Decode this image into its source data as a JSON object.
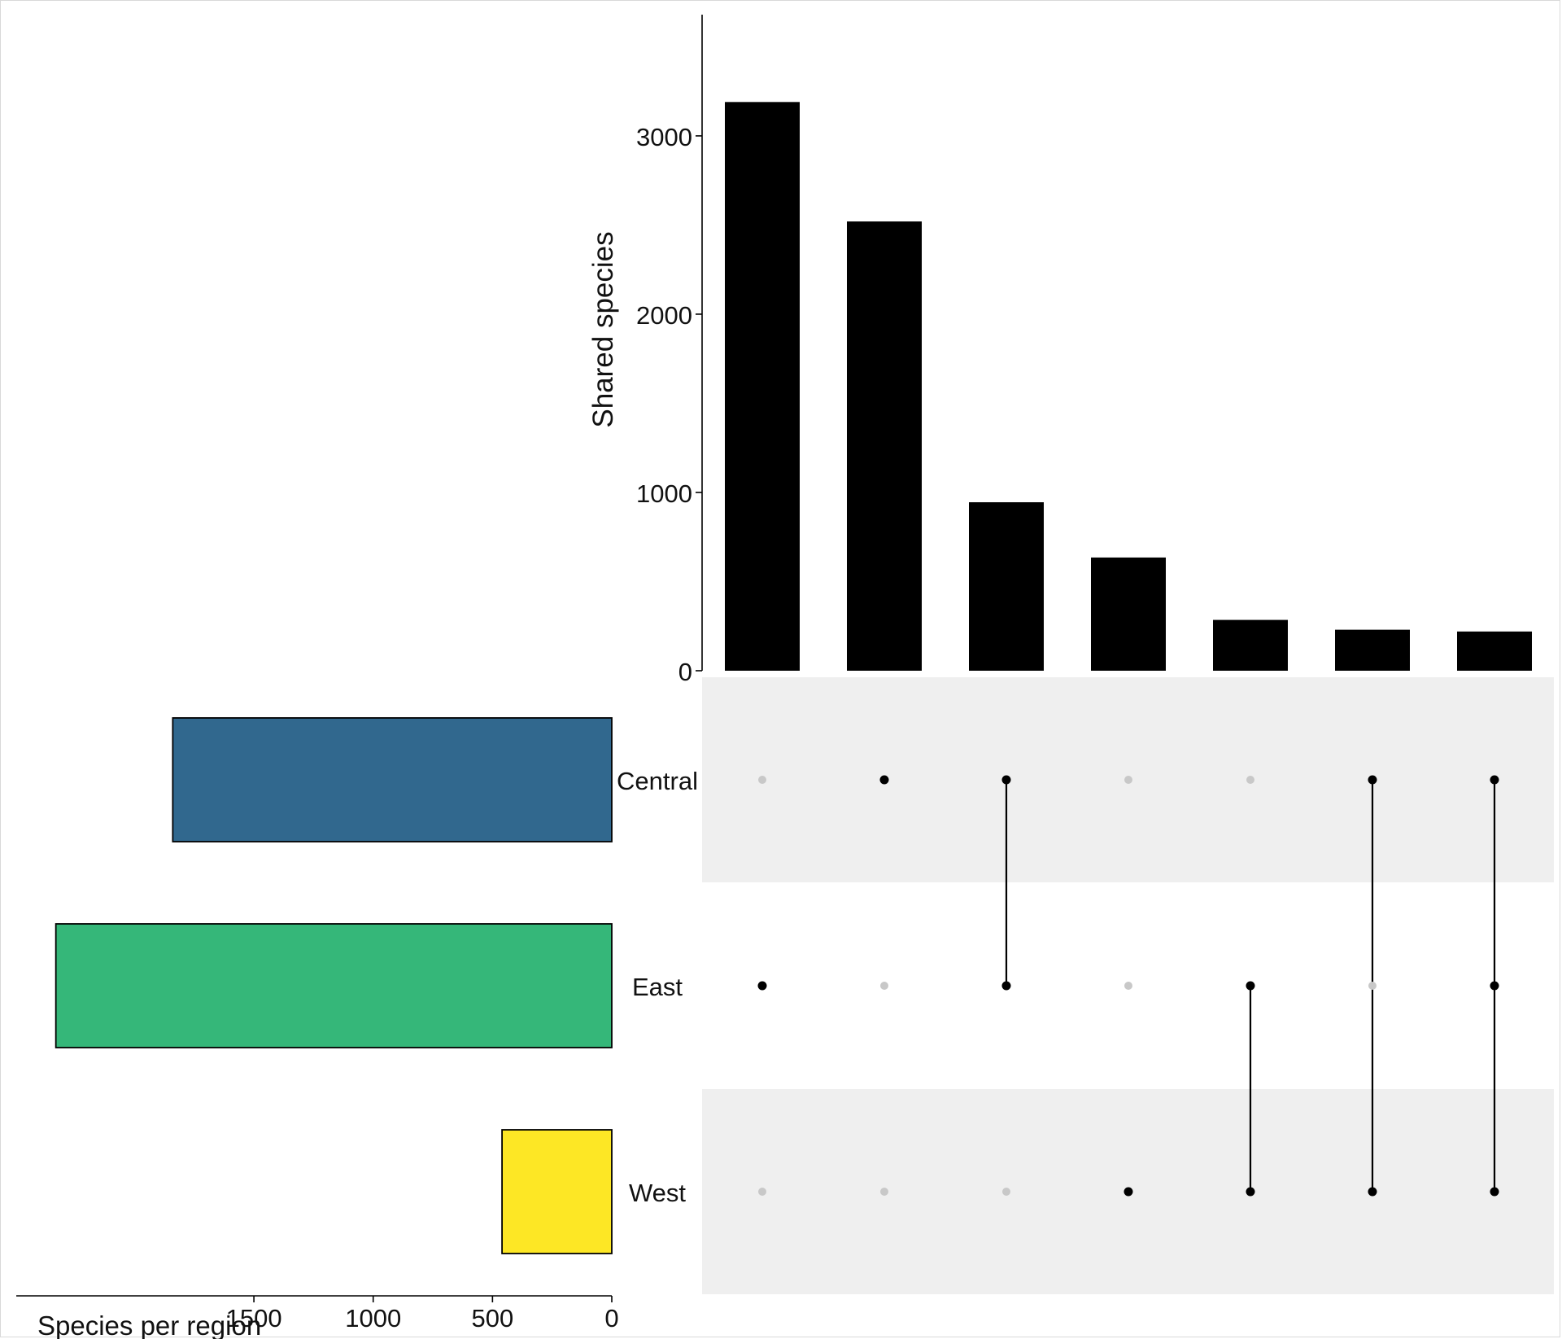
{
  "chart_data": {
    "type": "upset",
    "sets": [
      {
        "name": "Central",
        "size": 1840,
        "color": "#31688e"
      },
      {
        "name": "East",
        "size": 2330,
        "color": "#35b779"
      },
      {
        "name": "West",
        "size": 460,
        "color": "#fde725"
      }
    ],
    "intersections": [
      {
        "members": [
          "East"
        ],
        "value": 3190
      },
      {
        "members": [
          "Central"
        ],
        "value": 2520
      },
      {
        "members": [
          "Central",
          "East"
        ],
        "value": 945
      },
      {
        "members": [
          "West"
        ],
        "value": 635
      },
      {
        "members": [
          "East",
          "West"
        ],
        "value": 285
      },
      {
        "members": [
          "Central",
          "West"
        ],
        "value": 230
      },
      {
        "members": [
          "Central",
          "East",
          "West"
        ],
        "value": 220
      }
    ],
    "intersection_axis": {
      "label": "Shared species",
      "ticks": [
        0,
        1000,
        2000,
        3000
      ],
      "range": [
        0,
        3680
      ]
    },
    "set_size_axis": {
      "label": "Species per region",
      "ticks": [
        0,
        500,
        1000,
        1500
      ],
      "range": [
        0,
        2380
      ],
      "reversed": true
    },
    "colors": {
      "bar": "#000000",
      "dot_active": "#000000",
      "dot_inactive": "#c8c8c8",
      "row_band": "#efefef"
    }
  }
}
